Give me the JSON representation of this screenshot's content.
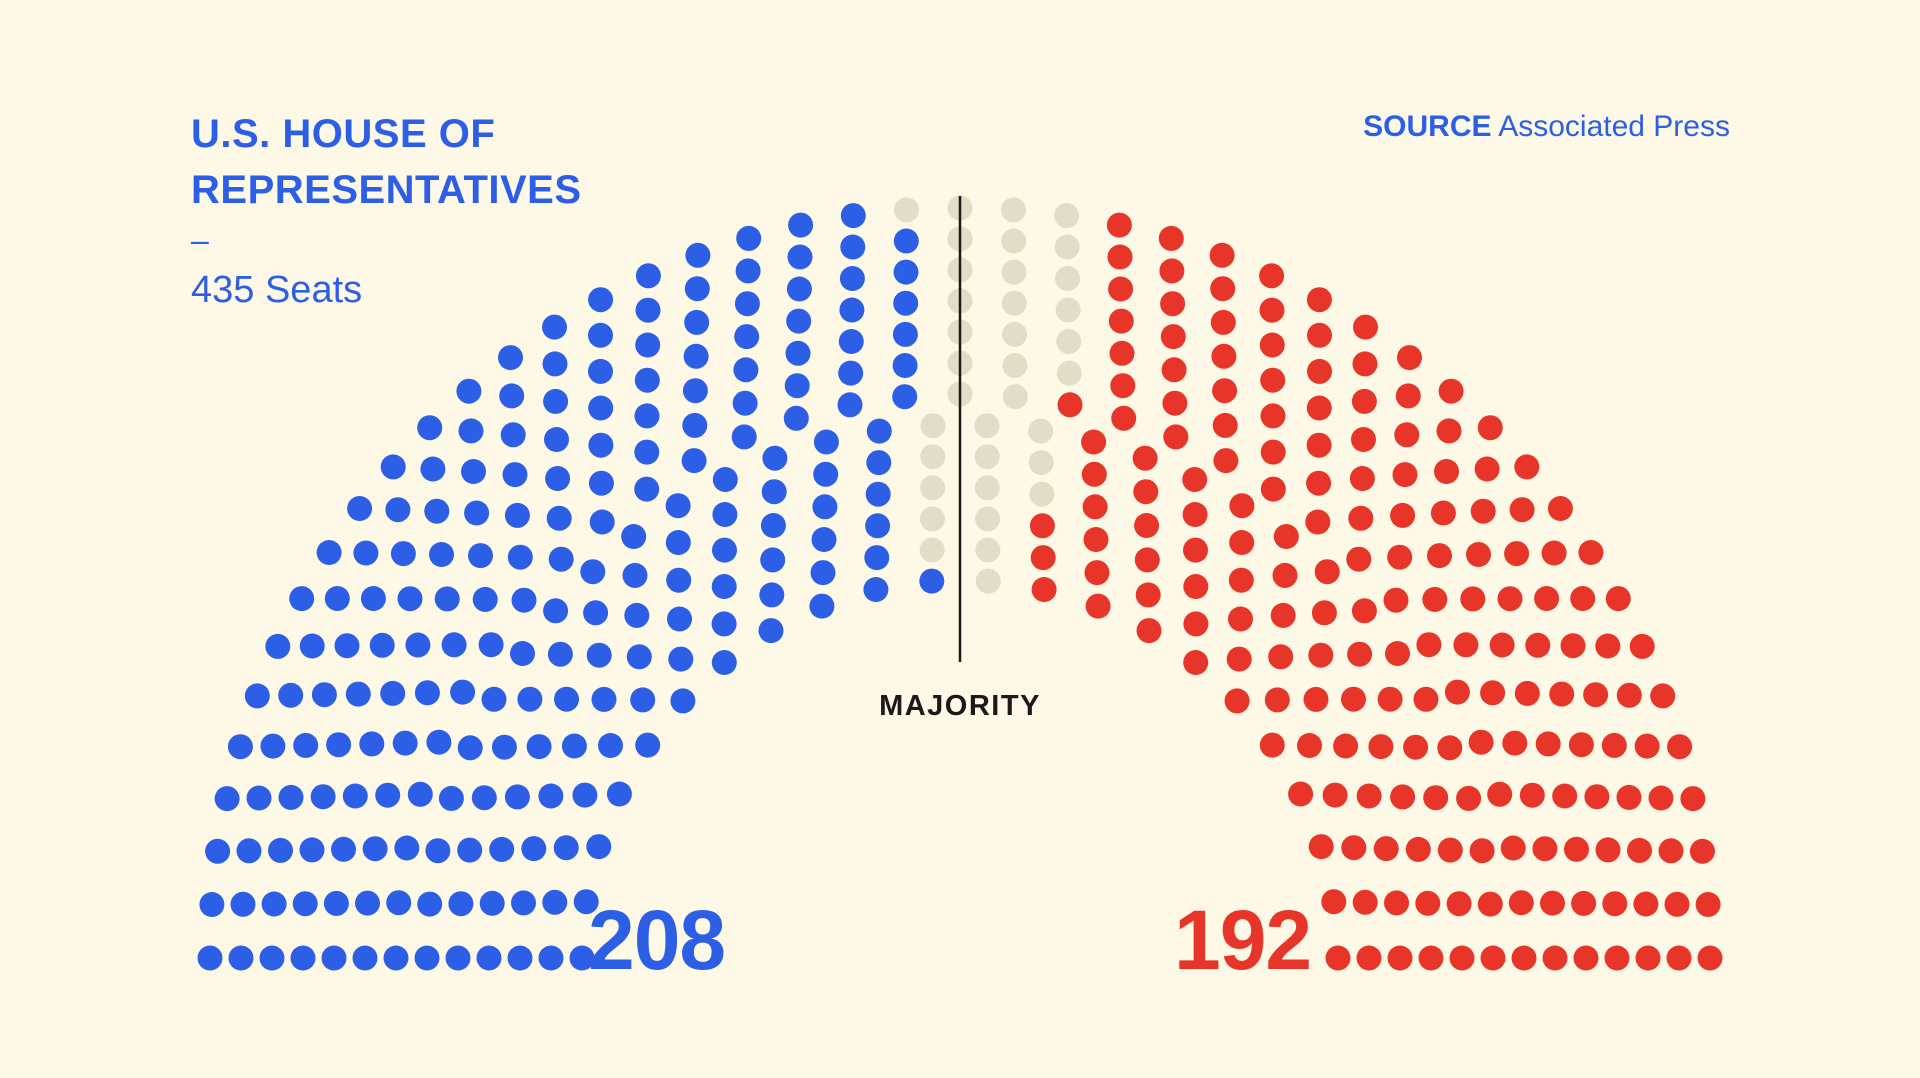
{
  "header": {
    "title": "U.S. HOUSE OF REPRESENTATIVES",
    "dash": "–",
    "subtitle": "435 Seats"
  },
  "source": {
    "label": "SOURCE",
    "text": "Associated Press"
  },
  "chart_data": {
    "type": "parliament",
    "total_seats": 435,
    "rows": 13,
    "majority_label": "MAJORITY",
    "majority_threshold": 218,
    "series": [
      {
        "key": "dem",
        "value": 208,
        "label": "208",
        "color": "#2c5fe5"
      },
      {
        "key": "undecided",
        "value": 35,
        "color": "#e2ddc6"
      },
      {
        "key": "rep",
        "value": 192,
        "label": "192",
        "color": "#e8352a"
      }
    ]
  },
  "colors": {
    "background": "#fdf9e6",
    "majority_line": "#1a1a1a"
  }
}
